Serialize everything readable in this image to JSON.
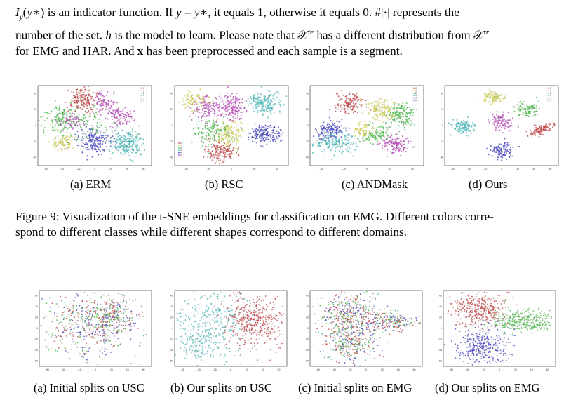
{
  "paragraph": {
    "line1": "I_y(y*) is an indicator function. If y = y*, it equals 1, otherwise it equals 0. #|·| represents the",
    "line2": "number of the set. h is the model to learn. Please note that 𝒳^te has a different distribution from 𝒳^tr",
    "line3": "for EMG and HAR. And x has been preprocessed and each sample is a segment."
  },
  "figure9": {
    "subcaptions": [
      "(a) ERM",
      "(b) RSC",
      "(c) ANDMask",
      "(d) Ours"
    ],
    "caption_line1": "Figure 9: Visualization of the t-SNE embeddings for classification on EMG. Different colors corre-",
    "caption_line2": "spond to different classes while different shapes correspond to different domains."
  },
  "figure10": {
    "subcaptions": [
      "(a) Initial splits on USC",
      "(b) Our splits on USC",
      "(c) Initial splits on EMG",
      "(d) Our splits on EMG"
    ]
  },
  "legend": {
    "labels": [
      "0",
      "1",
      "2",
      "3",
      "4",
      "5"
    ],
    "colors": [
      "#e24a4a",
      "#e8e84a",
      "#4ad24a",
      "#4ad2d2",
      "#4a4ae2",
      "#d24ad2"
    ]
  },
  "top_ticks": {
    "erm_x": [
      "-60",
      "-40",
      "-20",
      "0",
      "20",
      "40",
      "60"
    ],
    "erm_y": [
      "40",
      "20",
      "0",
      "-20",
      "-40"
    ],
    "rsc_x": [
      "-40",
      "-20",
      "0",
      "20",
      "40"
    ],
    "rsc_y": [
      "40",
      "20",
      "0",
      "-20",
      "-40"
    ],
    "and_x": [
      "-40",
      "-20",
      "0",
      "20",
      "40"
    ],
    "and_y": [
      "40",
      "20",
      "0",
      "-20",
      "-40"
    ],
    "ours_x": [
      "-60",
      "-40",
      "-20",
      "0",
      "20",
      "40",
      "60"
    ],
    "ours_y": [
      "40",
      "20",
      "0",
      "-20",
      "-40"
    ]
  },
  "bottom_ticks": {
    "x": [
      "-60",
      "-40",
      "-20",
      "0",
      "20",
      "40",
      "60"
    ],
    "y": [
      "60",
      "40",
      "20",
      "0",
      "-20",
      "-40",
      "-60"
    ]
  }
}
